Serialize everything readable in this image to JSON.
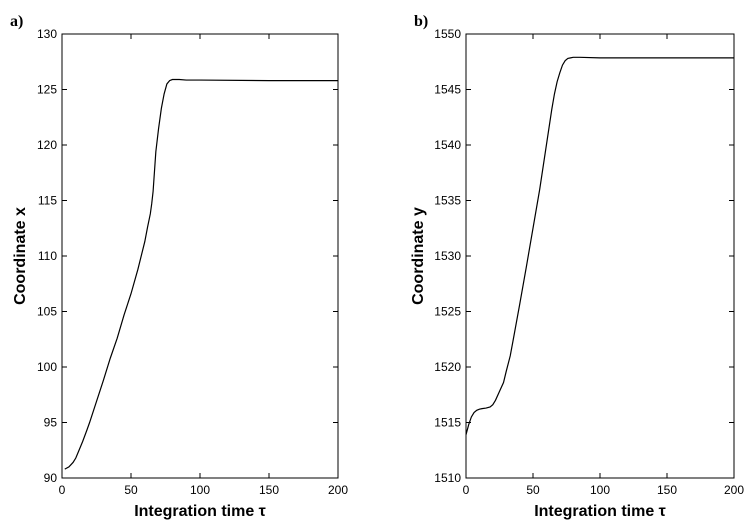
{
  "chart_data": [
    {
      "type": "line",
      "panel_label": "a)",
      "xlabel": "Integration time τ",
      "ylabel": "Coordinate x",
      "xlim": [
        0,
        200
      ],
      "ylim": [
        90,
        130
      ],
      "xticks": [
        "0",
        "50",
        "100",
        "150",
        "200"
      ],
      "yticks": [
        "90",
        "95",
        "100",
        "105",
        "110",
        "115",
        "120",
        "125",
        "130"
      ],
      "grid": false,
      "series": [
        {
          "x": [
            2,
            5,
            8,
            10,
            12,
            15,
            18,
            20,
            25,
            30,
            35,
            40,
            45,
            50,
            55,
            60,
            62,
            64,
            65,
            66,
            67,
            68,
            70,
            72,
            74,
            76,
            78,
            80,
            85,
            90,
            100,
            150,
            200
          ],
          "y": [
            90.8,
            91.0,
            91.4,
            91.8,
            92.4,
            93.3,
            94.3,
            95.0,
            96.9,
            98.8,
            100.8,
            102.6,
            104.7,
            106.6,
            108.8,
            111.3,
            112.6,
            113.8,
            114.7,
            115.8,
            117.6,
            119.4,
            121.5,
            123.3,
            124.6,
            125.5,
            125.8,
            125.9,
            125.9,
            125.85,
            125.85,
            125.8,
            125.8
          ]
        }
      ]
    },
    {
      "type": "line",
      "panel_label": "b)",
      "xlabel": "Integration time τ",
      "ylabel": "Coordinate y",
      "xlim": [
        0,
        200
      ],
      "ylim": [
        1510,
        1550
      ],
      "xticks": [
        "0",
        "50",
        "100",
        "150",
        "200"
      ],
      "yticks": [
        "1510",
        "1515",
        "1520",
        "1525",
        "1530",
        "1535",
        "1540",
        "1545",
        "1550"
      ],
      "grid": false,
      "series": [
        {
          "x": [
            0,
            2,
            4,
            6,
            8,
            10,
            12,
            15,
            18,
            20,
            22,
            25,
            28,
            30,
            33,
            35,
            40,
            45,
            50,
            55,
            60,
            62,
            64,
            66,
            68,
            70,
            72,
            74,
            76,
            78,
            80,
            85,
            100,
            150,
            200
          ],
          "y": [
            1513.9,
            1514.8,
            1515.5,
            1515.9,
            1516.1,
            1516.2,
            1516.25,
            1516.3,
            1516.4,
            1516.6,
            1517.0,
            1517.8,
            1518.6,
            1519.6,
            1521.0,
            1522.3,
            1525.6,
            1529.0,
            1532.5,
            1536.0,
            1540.0,
            1541.6,
            1543.2,
            1544.6,
            1545.7,
            1546.5,
            1547.2,
            1547.6,
            1547.8,
            1547.85,
            1547.9,
            1547.9,
            1547.85,
            1547.85,
            1547.85
          ]
        }
      ]
    }
  ]
}
